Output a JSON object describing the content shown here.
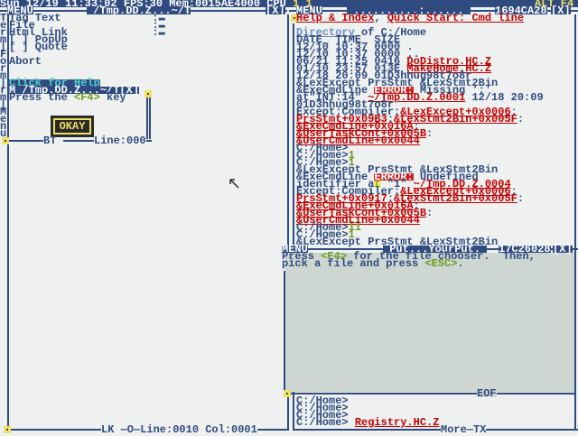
{
  "topbar": {
    "status": "Sun 12/19 11:33:02 FPS:30 Mem:0015AE4000 CPU ",
    "cpu_a": "1",
    "cpu_b": "1",
    "alt_f4": "ALT F4"
  },
  "left_window": {
    "title_menu": "MENU",
    "title": " /Tmp.DD.Z...~/T",
    "close": "[X]",
    "lines": [
      [
        {
          "t": "Tag Text              :▬",
          "s": "n"
        }
      ],
      [
        {
          "t": "File                  :▬",
          "s": "n"
        }
      ],
      [
        {
          "t": "Html Link             :▬",
          "s": "n"
        }
      ],
      [
        {
          "t": "[ ] PopUp",
          "s": "n"
        }
      ],
      [
        {
          "t": "[ ] Quote",
          "s": "n"
        }
      ],
      [],
      [
        {
          "t": "Abort",
          "s": "n"
        }
      ],
      [],
      [],
      [
        {
          "t": "Click for Help",
          "s": "h"
        }
      ],
      [
        {
          "t": "M /Tmp.DD.Z...~/T[X]",
          "s": "w"
        }
      ],
      [
        {
          "t": "Press the ",
          "s": "n"
        },
        {
          "t": "<F4>",
          "s": "g"
        },
        {
          "t": " key",
          "s": "n"
        }
      ]
    ],
    "okay": "OKAY",
    "inner_footer": "BT ",
    "inner_line": "Line:000",
    "sidebar_letters": [
      "T",
      "e",
      "r",
      "m",
      "|",
      "F",
      "o",
      "r",
      "m",
      "|",
      "r",
      "m",
      "|",
      "M",
      "e",
      "n",
      "u"
    ],
    "footer": "LK —O—Line:0010 Col:0001"
  },
  "right_window": {
    "title_menu": "MENU",
    "title_dots": " ..........:...... ",
    "title_id": "1694CA28",
    "close": "[X]",
    "lines": [
      [
        {
          "t": "Help & Index",
          "s": "r"
        },
        {
          "t": ", ",
          "s": "n"
        },
        {
          "t": "Quick Start: Cmd line",
          "s": "r"
        }
      ],
      [],
      [
        {
          "t": "Directory",
          "s": "u"
        },
        {
          "t": " of C:/Home",
          "s": "n"
        }
      ],
      [
        {
          "t": "DATE_ TIME_ SIZE",
          "s": "n"
        }
      ],
      [
        {
          "t": "12/10 10:37 0000 ",
          "s": "n"
        },
        {
          "t": ".",
          "s": "n"
        }
      ],
      [
        {
          "t": "12/10 10:37 0000 ",
          "s": "n"
        },
        {
          "t": "..",
          "s": "n"
        }
      ],
      [
        {
          "t": "06/21 11:25 0416 ",
          "s": "n"
        },
        {
          "t": "DoDistro.HC.Z",
          "s": "r"
        }
      ],
      [
        {
          "t": "01/10 23:57 013E ",
          "s": "n"
        },
        {
          "t": "MakeHome.HC.Z",
          "s": "r"
        }
      ],
      [
        {
          "t": "12/18 20:09 01D3hhug98t7o8r",
          "s": "n"
        }
      ],
      [
        {
          "t": "&LexExcept PrsStmt &LexStmt2Bin",
          "s": "n"
        }
      ],
      [
        {
          "t": "&ExeCmdLine ",
          "s": "n"
        },
        {
          "t": "ERROR:",
          "s": "e"
        },
        {
          "t": " Missing ';'",
          "s": "n"
        }
      ],
      [
        {
          "t": "at\"INT:14\" ",
          "s": "n"
        },
        {
          "t": "~/Tmp.DD.Z.0001",
          "s": "r"
        },
        {
          "t": " 12/18 20:09",
          "s": "n"
        }
      ],
      [
        {
          "t": "01D3hhug98t7o8r",
          "s": "n"
        }
      ],
      [
        {
          "t": "Except:Compiler:",
          "s": "n"
        },
        {
          "t": "&LexExcept+0x0006",
          "s": "r"
        },
        {
          "t": ":",
          "s": "n"
        }
      ],
      [
        {
          "t": "PrsStmt+0x09B3",
          "s": "r"
        },
        {
          "t": ":",
          "s": "n"
        },
        {
          "t": "&LexStmt2Bin+0x005F",
          "s": "r"
        },
        {
          "t": ":",
          "s": "n"
        }
      ],
      [
        {
          "t": "&ExeCmdLine+0x016A",
          "s": "r"
        },
        {
          "t": ":",
          "s": "n"
        }
      ],
      [
        {
          "t": "&UserTaskCont+0x005B",
          "s": "r"
        },
        {
          "t": ":",
          "s": "n"
        }
      ],
      [
        {
          "t": "&UserCmdLine+0x0044",
          "s": "r"
        }
      ],
      [
        {
          "t": "C:/Home>",
          "s": "n"
        }
      ],
      [
        {
          "t": "C:/Home>",
          "s": "n"
        },
        {
          "t": "1",
          "s": "g"
        }
      ],
      [
        {
          "t": "C:/Home>",
          "s": "n"
        },
        {
          "t": "1",
          "s": "g"
        }
      ],
      [
        {
          "t": "&LexExcept PrsStmt &LexStmt2Bin",
          "s": "n"
        }
      ],
      [
        {
          "t": "&ExeCmdLine ",
          "s": "n"
        },
        {
          "t": "ERROR:",
          "s": "e"
        },
        {
          "t": " Undefined",
          "s": "n"
        }
      ],
      [
        {
          "t": "identifier a",
          "s": "n"
        },
        {
          "t": "t",
          "s": "y"
        },
        {
          "t": " \"1\" ",
          "s": "n"
        },
        {
          "t": "~/Tmp.DD.Z.0004",
          "s": "r"
        }
      ],
      [
        {
          "t": "Except:Compiler:",
          "s": "n"
        },
        {
          "t": "&LexExcept+0x0006",
          "s": "r"
        },
        {
          "t": ":",
          "s": "n"
        }
      ],
      [
        {
          "t": "PrsStmt+0x0917",
          "s": "r"
        },
        {
          "t": ":",
          "s": "n"
        },
        {
          "t": "&LexStmt2Bin+0x005F",
          "s": "r"
        },
        {
          "t": ":",
          "s": "n"
        }
      ],
      [
        {
          "t": "&ExeCmdLine+0x016A",
          "s": "r"
        },
        {
          "t": ":",
          "s": "n"
        }
      ],
      [
        {
          "t": "&UserTaskCont+0x005B",
          "s": "r"
        },
        {
          "t": ":",
          "s": "n"
        }
      ],
      [
        {
          "t": "&UserCmdLine+0x0044",
          "s": "r"
        }
      ],
      [
        {
          "t": "C:/Home>",
          "s": "n"
        },
        {
          "t": "11",
          "s": "g"
        }
      ],
      [
        {
          "t": "C:/Home>",
          "s": "n"
        },
        {
          "t": "1",
          "s": "g"
        }
      ],
      [
        {
          "t": "&LexExcept PrsStmt &LexStmt2Bin",
          "s": "n"
        }
      ]
    ],
    "bottom_lines": [
      [
        {
          "t": "C:/Home>",
          "s": "n"
        }
      ],
      [
        {
          "t": "C:/Home>",
          "s": "n"
        }
      ],
      [
        {
          "t": "C:/Home>",
          "s": "n"
        }
      ],
      [
        {
          "t": "C:/Home> ",
          "s": "n"
        },
        {
          "t": "Registry.HC.Z",
          "s": "r"
        }
      ]
    ],
    "footer": "More—TX"
  },
  "popup": {
    "title_menu": "MENU",
    "title": " Put...YourPut. ",
    "title_id": "17C26028",
    "close": "[X]",
    "lines": [
      [
        {
          "t": "Press ",
          "s": "n"
        },
        {
          "t": "<F4>",
          "s": "g"
        },
        {
          "t": " for the file chooser.  Then,",
          "s": "n"
        }
      ],
      [
        {
          "t": "pick a file and press ",
          "s": "n"
        },
        {
          "t": "<ESC>",
          "s": "g"
        },
        {
          "t": ".",
          "s": "n"
        }
      ]
    ],
    "side_letters": [
      "r",
      "m"
    ],
    "eof": "EOF"
  },
  "colors": {
    "text": "#2f4b80",
    "link": "#c40000",
    "background": "#eef1f0",
    "popup": "#cdd6d0",
    "highlight": "#f0e060"
  }
}
